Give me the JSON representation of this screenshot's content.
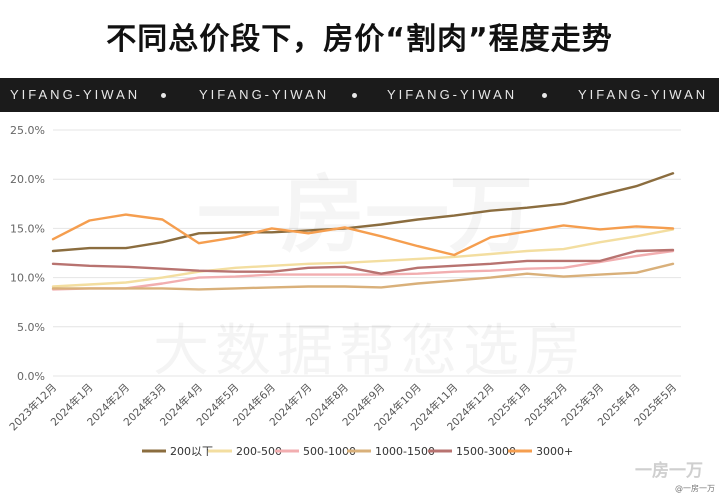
{
  "title": "不同总价段下，房价“割肉”程度走势",
  "banner": {
    "repeats": [
      "YIFANG-YIWAN",
      "YIFANG-YIWAN",
      "YIFANG-YIWAN",
      "YIFANG-YIWAN"
    ]
  },
  "watermark": {
    "top": "一房一万",
    "bottom": "大数据帮您选房"
  },
  "footer": {
    "logo": "一房一万",
    "small": "@一房一万"
  },
  "chart_data": {
    "type": "line",
    "categories": [
      "2023年12月",
      "2024年1月",
      "2024年2月",
      "2024年3月",
      "2024年4月",
      "2024年5月",
      "2024年6月",
      "2024年7月",
      "2024年8月",
      "2024年9月",
      "2024年10月",
      "2024年11月",
      "2024年12月",
      "2025年1月",
      "2025年2月",
      "2025年3月",
      "2025年4月",
      "2025年5月"
    ],
    "y_ticks": [
      "0.0%",
      "5.0%",
      "10.0%",
      "15.0%",
      "20.0%",
      "25.0%"
    ],
    "ylim": [
      0,
      25
    ],
    "grid": true,
    "legend_position": "bottom",
    "series": [
      {
        "name": "200以下",
        "color": "#8b6d3f",
        "values": [
          12.7,
          13.0,
          13.0,
          13.6,
          14.5,
          14.6,
          14.6,
          14.8,
          15.0,
          15.4,
          15.9,
          16.3,
          16.8,
          17.1,
          17.5,
          18.4,
          19.3,
          20.6
        ]
      },
      {
        "name": "200-500",
        "color": "#f3dea0",
        "values": [
          9.1,
          9.3,
          9.5,
          10.0,
          10.6,
          11.0,
          11.2,
          11.4,
          11.5,
          11.7,
          11.9,
          12.1,
          12.4,
          12.7,
          12.9,
          13.6,
          14.2,
          14.9
        ]
      },
      {
        "name": "500-1000",
        "color": "#f2aeb0",
        "values": [
          8.8,
          8.9,
          8.9,
          9.4,
          10.0,
          10.1,
          10.3,
          10.3,
          10.3,
          10.3,
          10.4,
          10.6,
          10.7,
          10.9,
          11.0,
          11.6,
          12.2,
          12.7
        ]
      },
      {
        "name": "1000-1500",
        "color": "#d9b07a",
        "values": [
          8.9,
          8.9,
          8.9,
          8.9,
          8.8,
          8.9,
          9.0,
          9.1,
          9.1,
          9.0,
          9.4,
          9.7,
          10.0,
          10.4,
          10.1,
          10.3,
          10.5,
          11.4
        ]
      },
      {
        "name": "1500-3000",
        "color": "#b87370",
        "values": [
          11.4,
          11.2,
          11.1,
          10.9,
          10.7,
          10.6,
          10.6,
          11.0,
          11.1,
          10.4,
          11.0,
          11.2,
          11.4,
          11.7,
          11.7,
          11.7,
          12.7,
          12.8
        ]
      },
      {
        "name": "3000+",
        "color": "#f59e4f",
        "values": [
          13.9,
          15.8,
          16.4,
          15.9,
          13.5,
          14.1,
          15.0,
          14.5,
          15.1,
          14.2,
          13.2,
          12.3,
          14.1,
          14.7,
          15.3,
          14.9,
          15.2,
          15.0
        ]
      }
    ]
  }
}
